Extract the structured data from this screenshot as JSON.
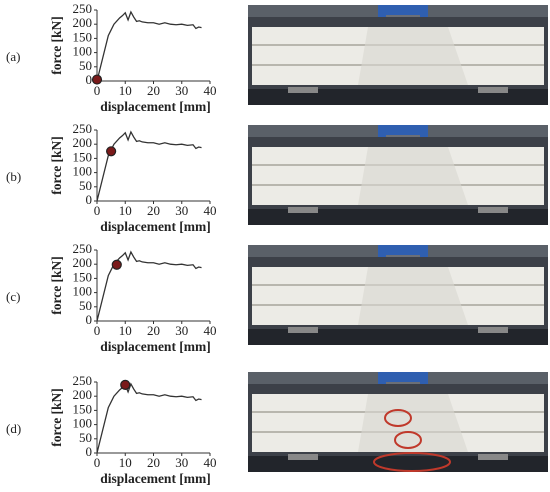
{
  "chart_data": [
    {
      "type": "line",
      "label": "(a)",
      "xlabel": "displacement [mm]",
      "ylabel": "force [kN]",
      "x": [
        0,
        2,
        4,
        6,
        8,
        9,
        10,
        11,
        12,
        13,
        14,
        15,
        16,
        18,
        20,
        22,
        24,
        26,
        28,
        30,
        32,
        34,
        35,
        36,
        37
      ],
      "values": [
        0,
        80,
        160,
        200,
        222,
        230,
        240,
        215,
        243,
        225,
        210,
        212,
        208,
        205,
        205,
        200,
        205,
        200,
        198,
        200,
        196,
        198,
        185,
        190,
        188
      ],
      "color": "#333333",
      "xlim": [
        0,
        40
      ],
      "xticks": [
        0,
        10,
        20,
        30,
        40
      ],
      "ylim": [
        0,
        250
      ],
      "yticks": [
        0,
        50,
        100,
        150,
        200,
        250
      ],
      "marker": {
        "x": 0,
        "y": 5
      }
    },
    {
      "type": "line",
      "label": "(b)",
      "xlabel": "displacement [mm]",
      "ylabel": "force [kN]",
      "x": [
        0,
        2,
        4,
        6,
        8,
        9,
        10,
        11,
        12,
        13,
        14,
        15,
        16,
        18,
        20,
        22,
        24,
        26,
        28,
        30,
        32,
        34,
        35,
        36,
        37
      ],
      "values": [
        0,
        80,
        160,
        200,
        222,
        230,
        240,
        215,
        243,
        225,
        210,
        212,
        208,
        205,
        205,
        200,
        205,
        200,
        198,
        200,
        196,
        198,
        185,
        190,
        188
      ],
      "color": "#333333",
      "xlim": [
        0,
        40
      ],
      "xticks": [
        0,
        10,
        20,
        30,
        40
      ],
      "ylim": [
        0,
        250
      ],
      "yticks": [
        0,
        50,
        100,
        150,
        200,
        250
      ],
      "marker": {
        "x": 5,
        "y": 175
      }
    },
    {
      "type": "line",
      "label": "(c)",
      "xlabel": "displacement [mm]",
      "ylabel": "force [kN]",
      "x": [
        0,
        2,
        4,
        6,
        8,
        9,
        10,
        11,
        12,
        13,
        14,
        15,
        16,
        18,
        20,
        22,
        24,
        26,
        28,
        30,
        32,
        34,
        35,
        36,
        37
      ],
      "values": [
        0,
        80,
        160,
        200,
        222,
        230,
        240,
        215,
        243,
        225,
        210,
        212,
        208,
        205,
        205,
        200,
        205,
        200,
        198,
        200,
        196,
        198,
        185,
        190,
        188
      ],
      "color": "#333333",
      "xlim": [
        0,
        40
      ],
      "xticks": [
        0,
        10,
        20,
        30,
        40
      ],
      "ylim": [
        0,
        250
      ],
      "yticks": [
        0,
        50,
        100,
        150,
        200,
        250
      ],
      "marker": {
        "x": 7,
        "y": 198
      }
    },
    {
      "type": "line",
      "label": "(d)",
      "xlabel": "displacement [mm]",
      "ylabel": "force [kN]",
      "x": [
        0,
        2,
        4,
        6,
        8,
        9,
        10,
        11,
        12,
        13,
        14,
        15,
        16,
        18,
        20,
        22,
        24,
        26,
        28,
        30,
        32,
        34,
        35,
        36,
        37
      ],
      "values": [
        0,
        80,
        160,
        200,
        222,
        230,
        240,
        215,
        243,
        225,
        210,
        212,
        208,
        205,
        205,
        200,
        205,
        200,
        198,
        200,
        196,
        198,
        185,
        190,
        188
      ],
      "color": "#333333",
      "xlim": [
        0,
        40
      ],
      "xticks": [
        0,
        10,
        20,
        30,
        40
      ],
      "ylim": [
        0,
        250
      ],
      "yticks": [
        0,
        50,
        100,
        150,
        200,
        250
      ],
      "marker": {
        "x": 10,
        "y": 240
      }
    }
  ]
}
